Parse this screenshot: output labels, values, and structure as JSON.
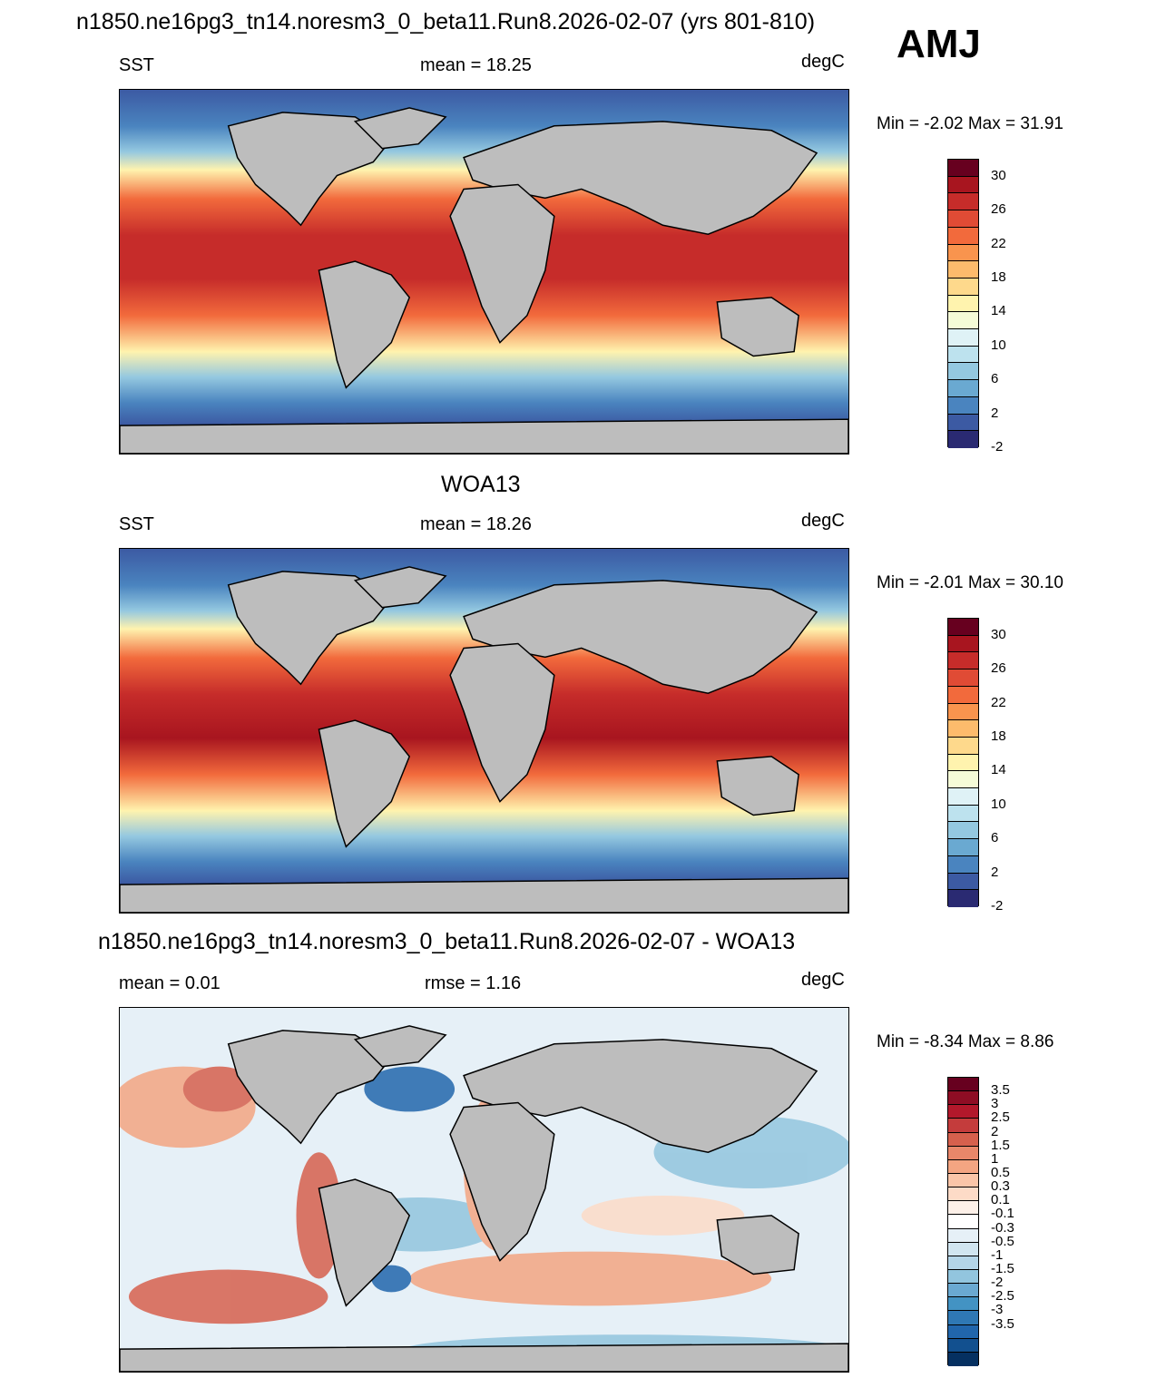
{
  "main_title": "n1850.ne16pg3_tn14.noresm3_0_beta11.Run8.2026-02-07 (yrs 801-810)",
  "season": "AMJ",
  "panels": [
    {
      "variable": "SST",
      "stat": "mean =  18.25",
      "units": "degC",
      "minmax": "Min =  -2.02 Max =  31.91"
    },
    {
      "title": "WOA13",
      "variable": "SST",
      "stat": "mean =  18.26",
      "units": "degC",
      "minmax": "Min =  -2.01 Max =  30.10"
    },
    {
      "title": "n1850.ne16pg3_tn14.noresm3_0_beta11.Run8.2026-02-07 - WOA13",
      "variable": "mean =   0.01",
      "stat": "rmse =   1.16",
      "units": "degC",
      "minmax": "Min =  -8.34 Max =   8.86"
    }
  ],
  "colorbar_abs": {
    "labels": [
      "30",
      "26",
      "22",
      "18",
      "14",
      "10",
      "6",
      "2",
      "-2"
    ],
    "colors": [
      "#67001f",
      "#a8151f",
      "#c62c2a",
      "#e04b35",
      "#f26a3c",
      "#f9944e",
      "#fdbb6c",
      "#fed98c",
      "#fff3ae",
      "#f5fbd7",
      "#dff2f6",
      "#bde2ee",
      "#94c8e0",
      "#6aa9d1",
      "#4a84bf",
      "#3c5aa3",
      "#2a2a72"
    ]
  },
  "colorbar_diff": {
    "labels": [
      "3.5",
      "3",
      "2.5",
      "2",
      "1.5",
      "1",
      "0.5",
      "0.3",
      "0.1",
      "-0.1",
      "-0.3",
      "-0.5",
      "-1",
      "-1.5",
      "-2",
      "-2.5",
      "-3",
      "-3.5"
    ],
    "colors": [
      "#67001f",
      "#8e0d24",
      "#b2182b",
      "#c43c3c",
      "#d6604d",
      "#e8876a",
      "#f4a582",
      "#fac5a8",
      "#fddbc7",
      "#fdf0e8",
      "#ffffff",
      "#e6f0f7",
      "#d1e5f0",
      "#b4d5e8",
      "#92c5de",
      "#6aa9d1",
      "#4393c3",
      "#2f78b4",
      "#2166ac",
      "#12508f",
      "#053061"
    ]
  }
}
